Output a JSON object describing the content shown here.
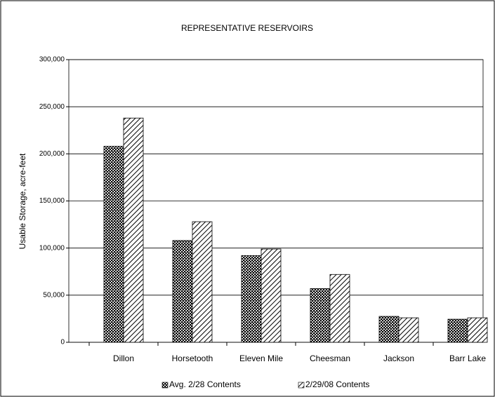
{
  "chart_data": {
    "type": "bar",
    "title": "REPRESENTATIVE RESERVOIRS",
    "y_label": "Usable Storage, acre-feet",
    "categories": [
      "Dillon",
      "Horsetooth",
      "Eleven Mile",
      "Cheesman",
      "Jackson",
      "Barr Lake"
    ],
    "series": [
      {
        "name": "Avg. 2/28 Contents",
        "color": "#000000",
        "pattern": "crosshatch",
        "values": [
          208000,
          108000,
          92000,
          57000,
          27500,
          24500
        ]
      },
      {
        "name": "2/29/08 Contents",
        "color": "#000000",
        "pattern": "diagonal",
        "values": [
          238000,
          128000,
          99000,
          72000,
          26000,
          26000
        ]
      }
    ],
    "ylim": [
      0,
      300000
    ],
    "yticks": [
      0,
      {
        "value": 50000,
        "label": "50,000"
      },
      {
        "value": 100000,
        "label": "100,000"
      },
      {
        "value": 150000,
        "label": "150,000"
      },
      {
        "value": 200000,
        "label": "200,000"
      },
      {
        "value": 250000,
        "label": "250,000"
      },
      {
        "value": 300000,
        "label": "300,000"
      }
    ],
    "grid": true,
    "legend": "bottom"
  }
}
